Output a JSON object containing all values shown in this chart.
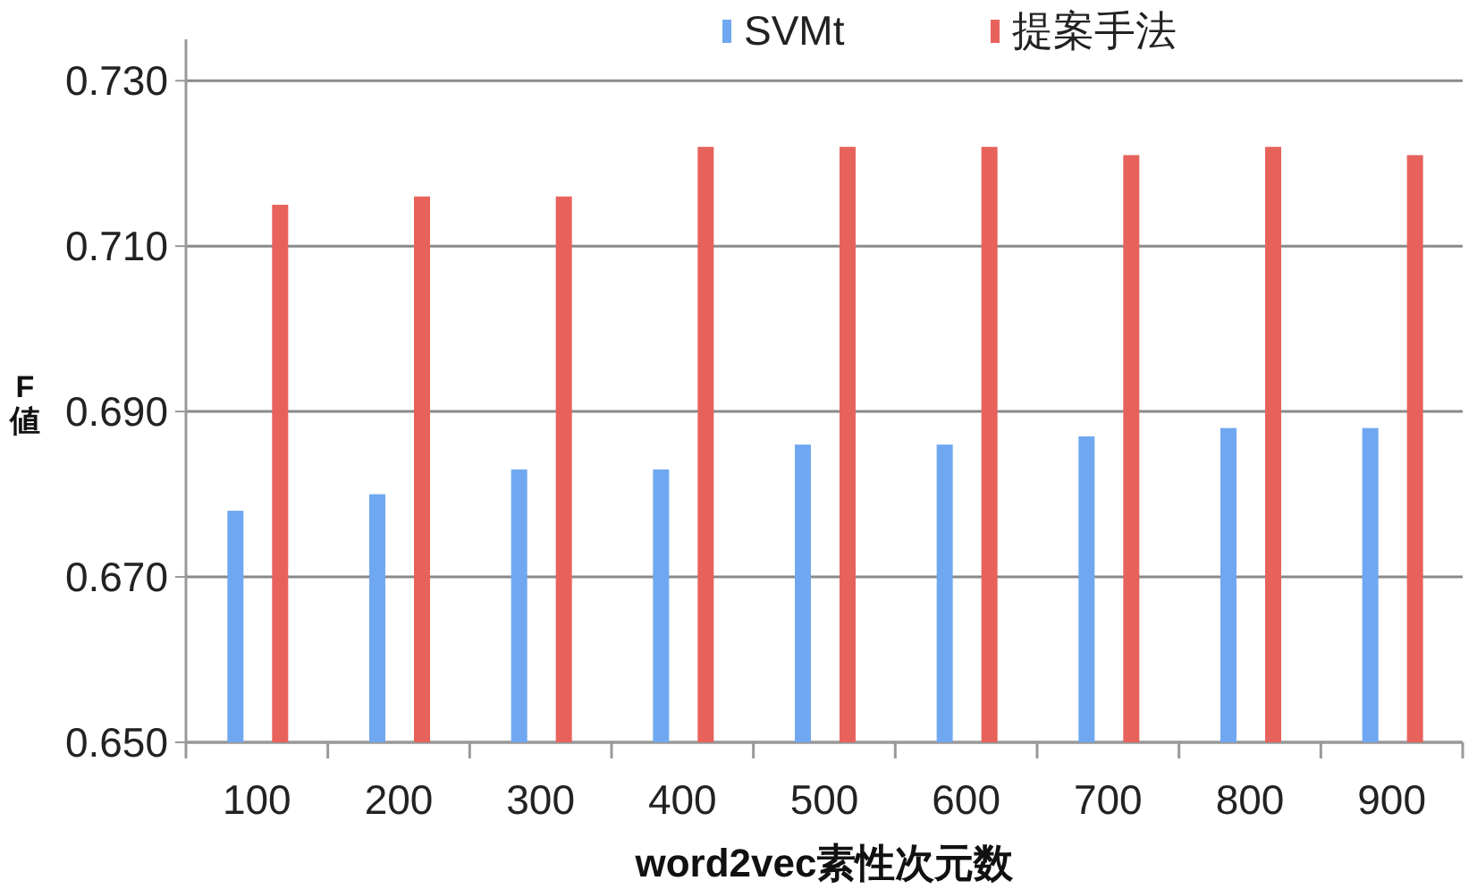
{
  "chart_data": {
    "type": "bar",
    "xlabel": "word2vec素性次元数",
    "ylabel": "F値",
    "categories": [
      "100",
      "200",
      "300",
      "400",
      "500",
      "600",
      "700",
      "800",
      "900"
    ],
    "series": [
      {
        "name": "SVMt",
        "color": "#6fa8f0",
        "values": [
          0.678,
          0.68,
          0.683,
          0.683,
          0.686,
          0.686,
          0.687,
          0.688,
          0.688
        ]
      },
      {
        "name": "提案手法",
        "color": "#e8625c",
        "values": [
          0.715,
          0.716,
          0.716,
          0.722,
          0.722,
          0.722,
          0.721,
          0.722,
          0.721
        ]
      }
    ],
    "ylim": [
      0.65,
      0.735
    ],
    "yticks": [
      {
        "value": 0.65,
        "label": "0.650"
      },
      {
        "value": 0.67,
        "label": "0.670"
      },
      {
        "value": 0.69,
        "label": "0.690"
      },
      {
        "value": 0.71,
        "label": "0.710"
      },
      {
        "value": 0.73,
        "label": "0.730"
      }
    ],
    "grid": "y",
    "legend": "top"
  }
}
